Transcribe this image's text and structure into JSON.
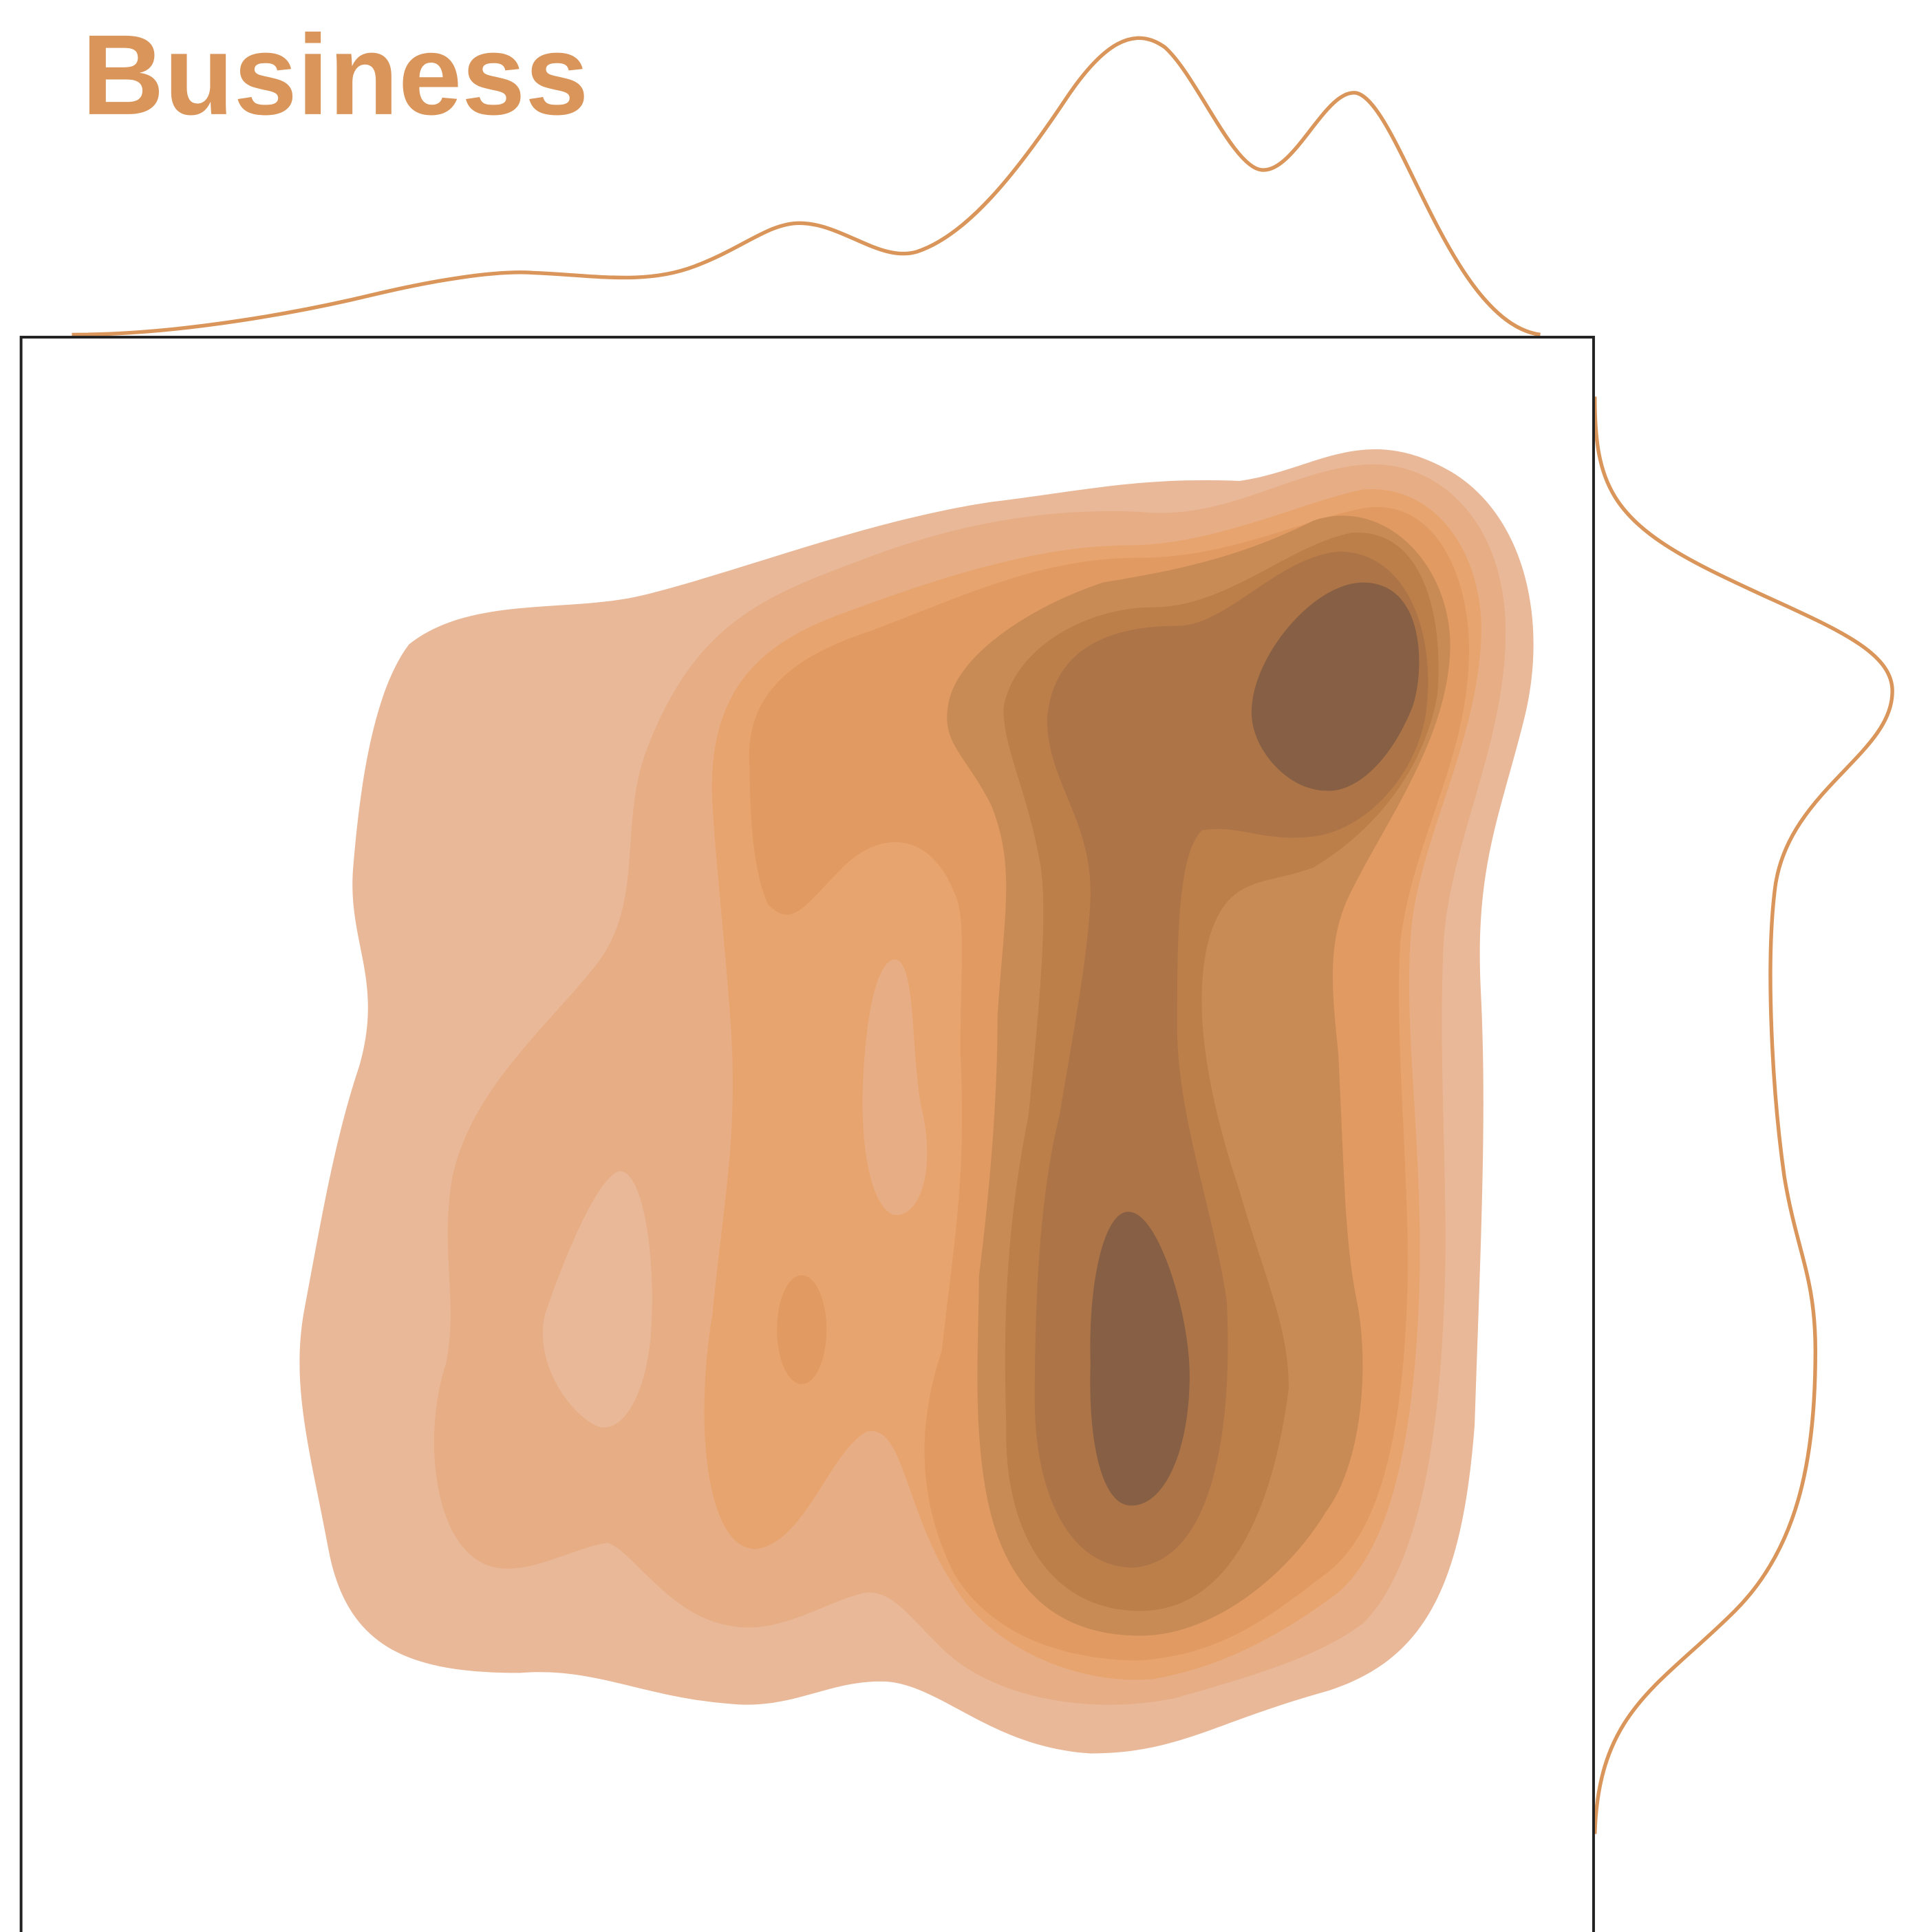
{
  "chart_data": {
    "type": "kde2d",
    "title": "Business",
    "color": "#d9955a"
  }
}
